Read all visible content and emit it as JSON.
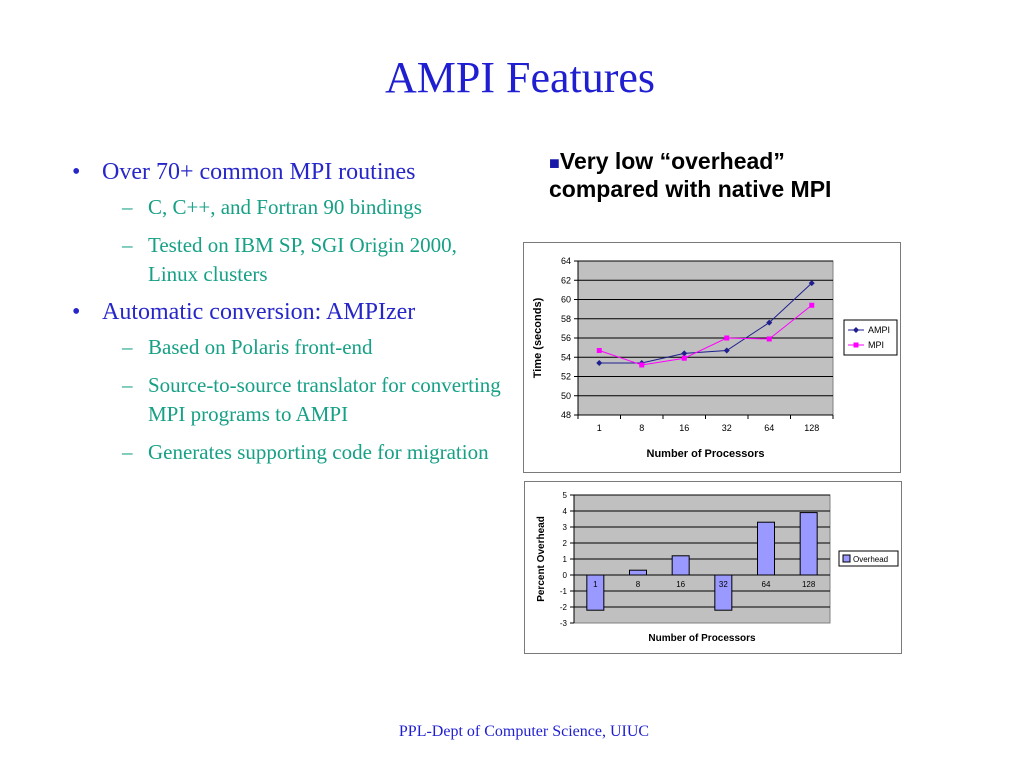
{
  "slide": {
    "title": "AMPI Features",
    "footer": "PPL-Dept of Computer Science, UIUC",
    "heading_marker": "■",
    "heading_text": "Very low “overhead” compared with native MPI",
    "bullets": [
      {
        "text": "Over 70+ common MPI routines",
        "subs": [
          "C, C++, and Fortran 90 bindings",
          "Tested on IBM SP, SGI Origin 2000, Linux clusters"
        ]
      },
      {
        "text_prefix": "Automatic conversion: ",
        "text_em": "AMPIzer",
        "subs": [
          "Based on Polaris front-end",
          "Source-to-source translator for converting MPI programs to AMPI",
          "Generates supporting code for migration"
        ]
      }
    ],
    "bullet_marker": "•",
    "sub_marker": "–"
  },
  "chart_data": [
    {
      "type": "line",
      "categories": [
        "1",
        "8",
        "16",
        "32",
        "64",
        "128"
      ],
      "series": [
        {
          "name": "AMPI",
          "values": [
            53.4,
            53.4,
            54.4,
            54.7,
            57.6,
            61.7
          ],
          "color": "#1f1f8f",
          "marker": "diamond"
        },
        {
          "name": "MPI",
          "values": [
            54.7,
            53.2,
            53.9,
            56.0,
            55.9,
            59.4
          ],
          "color": "#ff00ff",
          "marker": "square"
        }
      ],
      "xlabel": "Number of Processors",
      "ylabel": "Time (seconds)",
      "ylim": [
        48,
        64
      ],
      "yticks": [
        48,
        50,
        52,
        54,
        56,
        58,
        60,
        62,
        64
      ],
      "grid": true,
      "plot_background": "#c0c0c0",
      "legend": "right"
    },
    {
      "type": "bar",
      "categories": [
        "1",
        "8",
        "16",
        "32",
        "64",
        "128"
      ],
      "series": [
        {
          "name": "Overhead",
          "values": [
            -2.2,
            0.3,
            1.2,
            -2.2,
            3.3,
            3.9
          ],
          "color": "#9999ff"
        }
      ],
      "xlabel": "Number of Processors",
      "ylabel": "Percent Overhead",
      "ylim": [
        -3,
        5
      ],
      "yticks": [
        -3,
        -2,
        -1,
        0,
        1,
        2,
        3,
        4,
        5
      ],
      "grid": true,
      "plot_background": "#c0c0c0",
      "legend": "right"
    }
  ]
}
